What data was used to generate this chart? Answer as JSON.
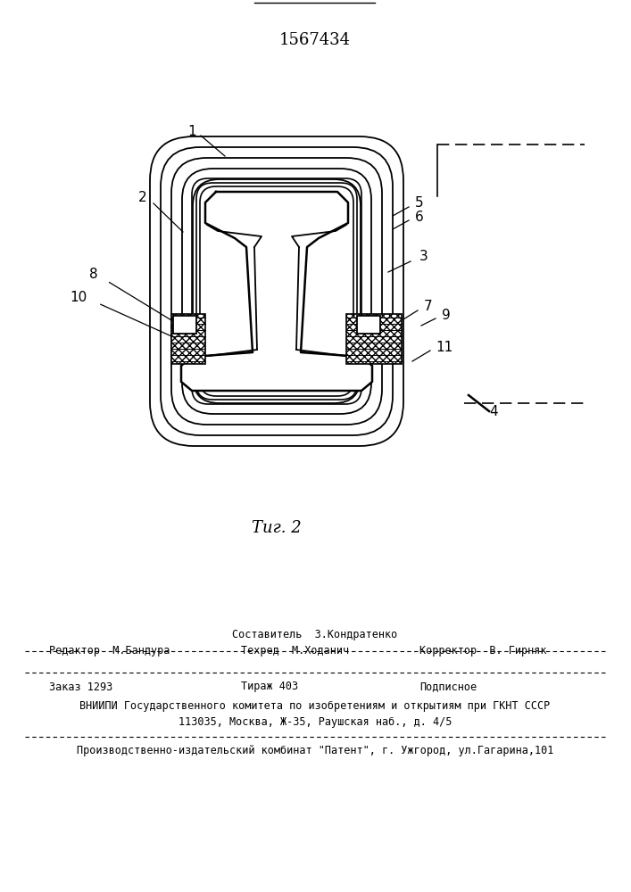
{
  "title": "1567434",
  "fig_label": "Τиг. 2",
  "bg_color": "#ffffff",
  "line_color": "#000000",
  "bottom_text1": "Составитель  З.Кондратенко",
  "bottom_text2a": "Редактор  М.Бандура",
  "bottom_text2b": "Техред  М.Ходанич",
  "bottom_text2c": "Корректор  В. Гирняк",
  "bottom_text3a": "Заказ 1293",
  "bottom_text3b": "Тираж 403",
  "bottom_text3c": "Подписное",
  "bottom_text4": "ВНИИПИ Государственного комитета по изобретениям и открытиям при ГКНТ СССР",
  "bottom_text5": "113035, Москва, Ж-35, Раушская наб., д. 4/5",
  "bottom_text6": "Производственно-издательский комбинат \"Патент\", г. Ужгород, ул.Гагарина,101"
}
